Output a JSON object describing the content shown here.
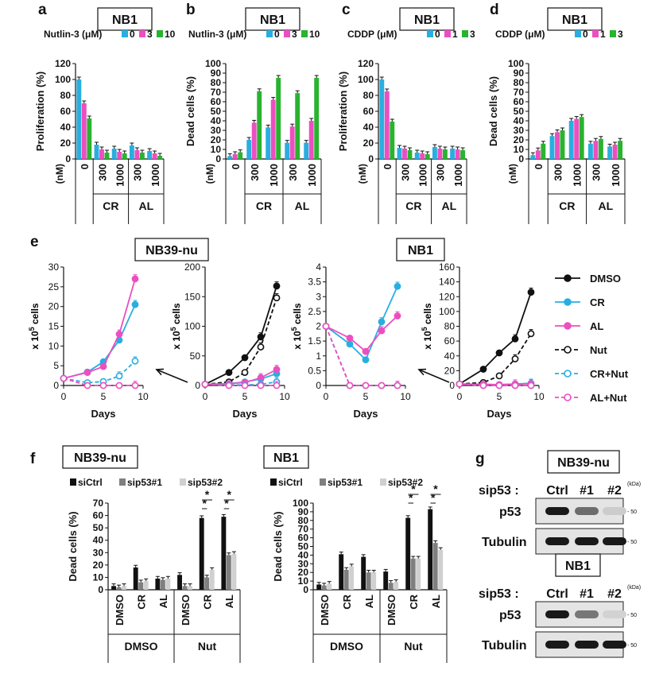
{
  "colors": {
    "blue": "#29aee0",
    "magenta": "#ec4fc0",
    "green": "#29b32f",
    "black": "#111111",
    "dgray": "#7f7f7f",
    "lgray": "#d0d0d0"
  },
  "text": {
    "x105cells": "x 10",
    "x105sup": "5",
    "x105tail": " cells",
    "days": "Days",
    "sip53": "sip53 :",
    "kda": "(kDa)",
    "tick50": "- 50"
  },
  "chart_data": [
    {
      "id": "a",
      "panel": "a",
      "type": "bar",
      "box": "NB1",
      "title": "Nutlin-3 (μM)",
      "legend": [
        "0",
        "3",
        "10"
      ],
      "colors": [
        "blue",
        "magenta",
        "green"
      ],
      "ylabel": "Proliferation (%)",
      "ylim": [
        0,
        120
      ],
      "yticks": [
        0,
        20,
        40,
        60,
        80,
        100,
        120
      ],
      "nm": "(nM)",
      "categories": [
        "0",
        "300",
        "1000",
        "300",
        "1000"
      ],
      "groups": [
        {
          "label": "CR",
          "from": 1,
          "to": 2
        },
        {
          "label": "AL",
          "from": 3,
          "to": 4
        }
      ],
      "series": [
        {
          "name": "0",
          "values": [
            100,
            18,
            13,
            17,
            10
          ]
        },
        {
          "name": "3",
          "values": [
            70,
            12,
            9,
            11,
            7
          ]
        },
        {
          "name": "10",
          "values": [
            51,
            8,
            7,
            8,
            4
          ]
        }
      ]
    },
    {
      "id": "b",
      "panel": "b",
      "type": "bar",
      "box": "NB1",
      "title": "Nutlin-3 (μM)",
      "legend": [
        "0",
        "3",
        "10"
      ],
      "colors": [
        "blue",
        "magenta",
        "green"
      ],
      "ylabel": "Dead cells (%)",
      "ylim": [
        0,
        100
      ],
      "yticks": [
        0,
        10,
        20,
        30,
        40,
        50,
        60,
        70,
        80,
        90,
        100
      ],
      "nm": "(nM)",
      "categories": [
        "0",
        "300",
        "1000",
        "300",
        "1000"
      ],
      "groups": [
        {
          "label": "CR",
          "from": 1,
          "to": 2
        },
        {
          "label": "AL",
          "from": 3,
          "to": 4
        }
      ],
      "series": [
        {
          "name": "0",
          "values": [
            3,
            20,
            33,
            17,
            17
          ]
        },
        {
          "name": "3",
          "values": [
            5,
            38,
            62,
            34,
            40
          ]
        },
        {
          "name": "10",
          "values": [
            7,
            71,
            85,
            69,
            85
          ]
        }
      ]
    },
    {
      "id": "c",
      "panel": "c",
      "type": "bar",
      "box": "NB1",
      "title": "CDDP (μM)",
      "legend": [
        "0",
        "1",
        "3"
      ],
      "colors": [
        "blue",
        "magenta",
        "green"
      ],
      "ylabel": "Proliferation (%)",
      "ylim": [
        0,
        120
      ],
      "yticks": [
        0,
        20,
        40,
        60,
        80,
        100,
        120
      ],
      "nm": "(nM)",
      "categories": [
        "0",
        "300",
        "1000",
        "300",
        "1000"
      ],
      "groups": [
        {
          "label": "CR",
          "from": 1,
          "to": 2
        },
        {
          "label": "AL",
          "from": 3,
          "to": 4
        }
      ],
      "series": [
        {
          "name": "0",
          "values": [
            100,
            14,
            8,
            15,
            13
          ]
        },
        {
          "name": "1",
          "values": [
            85,
            13,
            7,
            13,
            12
          ]
        },
        {
          "name": "3",
          "values": [
            47,
            11,
            6,
            12,
            11
          ]
        }
      ]
    },
    {
      "id": "d",
      "panel": "d",
      "type": "bar",
      "box": "NB1",
      "title": "CDDP (μM)",
      "legend": [
        "0",
        "1",
        "3"
      ],
      "colors": [
        "blue",
        "magenta",
        "green"
      ],
      "ylabel": "Dead cells (%)",
      "ylim": [
        0,
        100
      ],
      "yticks": [
        0,
        10,
        20,
        30,
        40,
        50,
        60,
        70,
        80,
        90,
        100
      ],
      "nm": "(nM)",
      "categories": [
        "0",
        "300",
        "1000",
        "300",
        "1000"
      ],
      "groups": [
        {
          "label": "CR",
          "from": 1,
          "to": 2
        },
        {
          "label": "AL",
          "from": 3,
          "to": 4
        }
      ],
      "series": [
        {
          "name": "0",
          "values": [
            4,
            24,
            40,
            16,
            13
          ]
        },
        {
          "name": "1",
          "values": [
            9,
            28,
            42,
            19,
            15
          ]
        },
        {
          "name": "3",
          "values": [
            16,
            30,
            44,
            21,
            19
          ]
        }
      ]
    },
    {
      "id": "e1",
      "panel": "e",
      "type": "line",
      "box": "NB39-nu",
      "ylim": [
        0,
        30
      ],
      "yticks": [
        0,
        5,
        10,
        15,
        20,
        25,
        30
      ],
      "xlim": [
        0,
        10
      ],
      "xticks": [
        0,
        5,
        10
      ],
      "series": [
        {
          "name": "CR",
          "x": [
            0,
            3,
            5,
            7,
            9
          ],
          "y": [
            1.8,
            3.4,
            6,
            11.5,
            20.5
          ]
        },
        {
          "name": "AL",
          "x": [
            0,
            3,
            5,
            7,
            9
          ],
          "y": [
            1.8,
            3.3,
            4.8,
            13,
            27
          ]
        },
        {
          "name": "CR+Nut",
          "x": [
            0,
            3,
            5,
            7,
            9
          ],
          "y": [
            1.8,
            0.7,
            1,
            2.4,
            6.2
          ]
        },
        {
          "name": "AL+Nut",
          "x": [
            0,
            3,
            5,
            7,
            9
          ],
          "y": [
            1.8,
            0,
            0,
            0,
            0
          ]
        }
      ]
    },
    {
      "id": "e2",
      "panel": "",
      "type": "line",
      "box": "",
      "ylim": [
        0,
        200
      ],
      "yticks": [
        0,
        50,
        100,
        150,
        200
      ],
      "xlim": [
        0,
        10
      ],
      "xticks": [
        0,
        5,
        10
      ],
      "series": [
        {
          "name": "DMSO",
          "x": [
            0,
            3,
            5,
            7,
            9
          ],
          "y": [
            2,
            22,
            47,
            82,
            168
          ]
        },
        {
          "name": "Nut",
          "x": [
            0,
            3,
            5,
            7,
            9
          ],
          "y": [
            2,
            6,
            22,
            65,
            148
          ]
        },
        {
          "name": "CR",
          "x": [
            0,
            3,
            5,
            7,
            9
          ],
          "y": [
            2,
            3,
            6,
            11,
            20
          ]
        },
        {
          "name": "AL",
          "x": [
            0,
            3,
            5,
            7,
            9
          ],
          "y": [
            2,
            3,
            5,
            13,
            27
          ]
        },
        {
          "name": "CR+Nut",
          "x": [
            0,
            3,
            5,
            7,
            9
          ],
          "y": [
            2,
            1,
            1,
            2,
            6
          ]
        },
        {
          "name": "AL+Nut",
          "x": [
            0,
            3,
            5,
            7,
            9
          ],
          "y": [
            2,
            0,
            0,
            0,
            0
          ]
        }
      ]
    },
    {
      "id": "e3",
      "panel": "",
      "type": "line",
      "box": "NB1",
      "ylim": [
        0,
        4
      ],
      "yticks": [
        0,
        0.5,
        1,
        1.5,
        2,
        2.5,
        3,
        3.5,
        4
      ],
      "xlim": [
        0,
        10
      ],
      "xticks": [
        0,
        5,
        10
      ],
      "series": [
        {
          "name": "CR",
          "x": [
            0,
            3,
            5,
            7,
            9
          ],
          "y": [
            2,
            1.4,
            0.87,
            2.15,
            3.35
          ]
        },
        {
          "name": "AL",
          "x": [
            0,
            3,
            5,
            7,
            9
          ],
          "y": [
            2,
            1.6,
            1.15,
            1.85,
            2.35
          ]
        },
        {
          "name": "CR+Nut",
          "x": [
            0,
            3,
            5,
            7,
            9
          ],
          "y": [
            2,
            0,
            0,
            0,
            0
          ]
        },
        {
          "name": "AL+Nut",
          "x": [
            0,
            3,
            5,
            7,
            9
          ],
          "y": [
            2,
            0,
            0,
            0,
            0
          ]
        }
      ]
    },
    {
      "id": "e4",
      "panel": "",
      "type": "line",
      "box": "",
      "ylim": [
        0,
        160
      ],
      "yticks": [
        0,
        20,
        40,
        60,
        80,
        100,
        120,
        140,
        160
      ],
      "xlim": [
        0,
        10
      ],
      "xticks": [
        0,
        5,
        10
      ],
      "series": [
        {
          "name": "DMSO",
          "x": [
            0,
            3,
            5,
            7,
            9
          ],
          "y": [
            2,
            22,
            44,
            63,
            126
          ]
        },
        {
          "name": "Nut",
          "x": [
            0,
            3,
            5,
            7,
            9
          ],
          "y": [
            2,
            4,
            13,
            36,
            70
          ]
        },
        {
          "name": "CR",
          "x": [
            0,
            3,
            5,
            7,
            9
          ],
          "y": [
            2,
            1.5,
            1,
            2,
            3
          ]
        },
        {
          "name": "AL",
          "x": [
            0,
            3,
            5,
            7,
            9
          ],
          "y": [
            2,
            1.6,
            1.2,
            1.9,
            2.4
          ]
        },
        {
          "name": "CR+Nut",
          "x": [
            0,
            3,
            5,
            7,
            9
          ],
          "y": [
            2,
            0,
            0,
            0,
            0
          ]
        },
        {
          "name": "AL+Nut",
          "x": [
            0,
            3,
            5,
            7,
            9
          ],
          "y": [
            2,
            0,
            0,
            0,
            0
          ]
        }
      ]
    },
    {
      "id": "f1",
      "panel": "f",
      "type": "bar",
      "box": "NB39-nu",
      "legend": [
        "siCtrl",
        "sip53#1",
        "sip53#2"
      ],
      "colors": [
        "black",
        "dgray",
        "lgray"
      ],
      "ylabel": "Dead cells (%)",
      "ylim": [
        0,
        70
      ],
      "yticks": [
        0,
        10,
        20,
        30,
        40,
        50,
        60,
        70
      ],
      "categories": [
        "DMSO",
        "CR",
        "AL",
        "DMSO",
        "CR",
        "AL"
      ],
      "groups": [
        {
          "label": "DMSO",
          "from": 0,
          "to": 2
        },
        {
          "label": "Nut",
          "from": 3,
          "to": 5
        }
      ],
      "series": [
        {
          "name": "siCtrl",
          "values": [
            3,
            18,
            9,
            12,
            58,
            59
          ]
        },
        {
          "name": "sip53#1",
          "values": [
            2,
            6,
            8,
            3,
            10,
            28
          ]
        },
        {
          "name": "sip53#2",
          "values": [
            3,
            7,
            9,
            3,
            16,
            29
          ]
        }
      ],
      "annotations": [
        "*",
        "*",
        "*",
        "*"
      ]
    },
    {
      "id": "f2",
      "panel": "",
      "type": "bar",
      "box": "NB1",
      "legend": [
        "siCtrl",
        "sip53#1",
        "sip53#2"
      ],
      "colors": [
        "black",
        "dgray",
        "lgray"
      ],
      "ylabel": "Dead cells (%)",
      "ylim": [
        0,
        100
      ],
      "yticks": [
        0,
        10,
        20,
        30,
        40,
        50,
        60,
        70,
        80,
        90,
        100
      ],
      "categories": [
        "DMSO",
        "CR",
        "AL",
        "DMSO",
        "CR",
        "AL"
      ],
      "groups": [
        {
          "label": "DMSO",
          "from": 0,
          "to": 2
        },
        {
          "label": "Nut",
          "from": 3,
          "to": 5
        }
      ],
      "series": [
        {
          "name": "siCtrl",
          "values": [
            6,
            41,
            38,
            21,
            83,
            93
          ]
        },
        {
          "name": "sip53#1",
          "values": [
            5,
            23,
            20,
            8,
            36,
            54
          ]
        },
        {
          "name": "sip53#2",
          "values": [
            7,
            27,
            20,
            9,
            36,
            46
          ]
        }
      ],
      "annotations": [
        "*",
        "*",
        "*",
        "*"
      ]
    }
  ],
  "line_legend": [
    {
      "name": "DMSO",
      "color": "black",
      "dash": false,
      "filled": true
    },
    {
      "name": "CR",
      "color": "blue",
      "dash": false,
      "filled": true
    },
    {
      "name": "AL",
      "color": "magenta",
      "dash": false,
      "filled": true
    },
    {
      "name": "Nut",
      "color": "black",
      "dash": true,
      "filled": false
    },
    {
      "name": "CR+Nut",
      "color": "blue",
      "dash": true,
      "filled": false
    },
    {
      "name": "AL+Nut",
      "color": "magenta",
      "dash": true,
      "filled": false
    }
  ],
  "blot": {
    "panel": "g",
    "groups": [
      {
        "box": "NB39-nu",
        "lanes": [
          "Ctrl",
          "#1",
          "#2"
        ],
        "rows": [
          {
            "label": "p53",
            "intensity": [
              1.0,
              0.6,
              0.15
            ]
          },
          {
            "label": "Tubulin",
            "intensity": [
              1.0,
              1.0,
              1.0
            ]
          }
        ]
      },
      {
        "box": "NB1",
        "lanes": [
          "Ctrl",
          "#1",
          "#2"
        ],
        "rows": [
          {
            "label": "p53",
            "intensity": [
              1.0,
              0.55,
              0.12
            ]
          },
          {
            "label": "Tubulin",
            "intensity": [
              1.0,
              1.0,
              1.0
            ]
          }
        ]
      }
    ]
  }
}
